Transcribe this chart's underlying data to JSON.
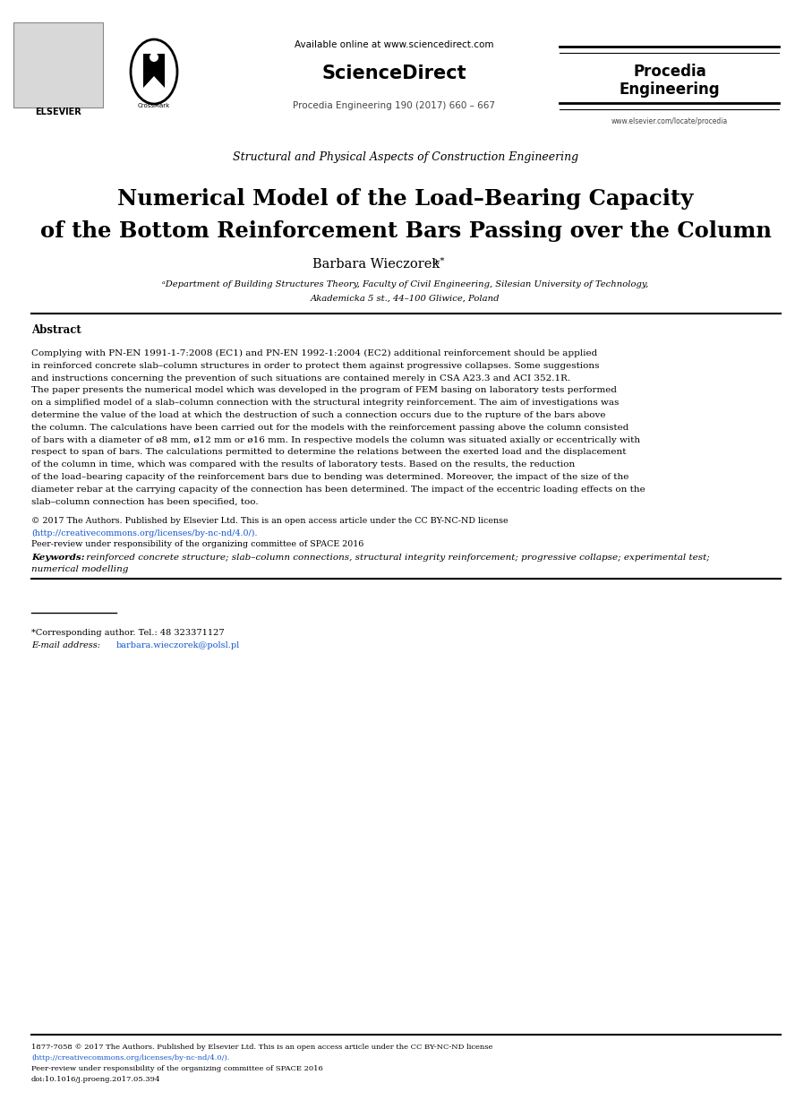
{
  "bg_color": "#ffffff",
  "header": {
    "available_online": "Available online at www.sciencedirect.com",
    "sciencedirect": "ScienceDirect",
    "journal_info": "Procedia Engineering 190 (2017) 660 – 667",
    "journal_name_line1": "Procedia",
    "journal_name_line2": "Engineering",
    "journal_url": "www.elsevier.com/locate/procedia",
    "elsevier_text": "ELSEVIER"
  },
  "conference_name": "Structural and Physical Aspects of Construction Engineering",
  "paper_title_line1": "Numerical Model of the Load–Bearing Capacity",
  "paper_title_line2": "of the Bottom Reinforcement Bars Passing over the Column",
  "author_name": "Barbara Wieczorek",
  "author_super": "a,*",
  "affiliation_line1": "ᵃDepartment of Building Structures Theory, Faculty of Civil Engineering, Silesian University of Technology,",
  "affiliation_line2": "Akademicka 5 st., 44–100 Gliwice, Poland",
  "abstract_title": "Abstract",
  "abstract_lines": [
    "Complying with PN-EN 1991-1-7:2008 (EC1) and PN-EN 1992-1:2004 (EC2) additional reinforcement should be applied",
    "in reinforced concrete slab–column structures in order to protect them against progressive collapses. Some suggestions",
    "and instructions concerning the prevention of such situations are contained merely in CSA A23.3 and ACI 352.1R.",
    "The paper presents the numerical model which was developed in the program of FEM basing on laboratory tests performed",
    "on a simplified model of a slab–column connection with the structural integrity reinforcement. The aim of investigations was",
    "determine the value of the load at which the destruction of such a connection occurs due to the rupture of the bars above",
    "the column. The calculations have been carried out for the models with the reinforcement passing above the column consisted",
    "of bars with a diameter of ø8 mm, ø12 mm or ø16 mm. In respective models the column was situated axially or eccentrically with",
    "respect to span of bars. The calculations permitted to determine the relations between the exerted load and the displacement",
    "of the column in time, which was compared with the results of laboratory tests. Based on the results, the reduction",
    "of the load–bearing capacity of the reinforcement bars due to bending was determined. Moreover, the impact of the size of the",
    "diameter rebar at the carrying capacity of the connection has been determined. The impact of the eccentric loading effects on the",
    "slab–column connection has been specified, too."
  ],
  "copyright_text": "© 2017 The Authors. Published by Elsevier Ltd. This is an open access article under the CC BY-NC-ND license",
  "copyright_url": "(http://creativecommons.org/licenses/by-nc-nd/4.0/).",
  "peer_review_text": "Peer-review under responsibility of the organizing committee of SPACE 2016",
  "keywords_bold": "Keywords:",
  "keywords_rest_line1": " reinforced concrete structure; slab–column connections, structural integrity reinforcement; progressive collapse; experimental test;",
  "keywords_rest_line2": "numerical modelling",
  "corresponding_tel": "*Corresponding author. Tel.: 48 323371127",
  "email_label": "E-mail address:",
  "email_addr": "barbara.wieczorek@polsl.pl",
  "footer_line1": "1877-7058 © 2017 The Authors. Published by Elsevier Ltd. This is an open access article under the CC BY-NC-ND license",
  "footer_line2": "(http://creativecommons.org/licenses/by-nc-nd/4.0/).",
  "footer_line3": "Peer-review under responsibility of the organizing committee of SPACE 2016",
  "footer_line4": "doi:10.1016/j.proeng.2017.05.394"
}
